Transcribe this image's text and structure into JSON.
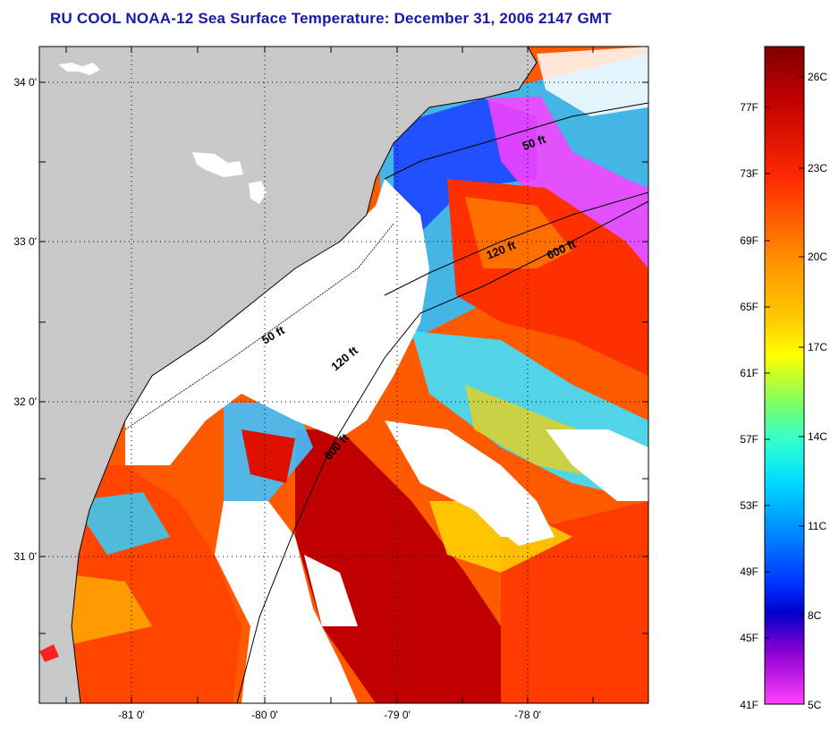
{
  "title": "RU COOL  NOAA-12  Sea Surface Temperature:  December 31, 2006 2147 GMT",
  "latitude_labels": [
    "34 0'",
    "33 0'",
    "32 0'",
    "31 0'"
  ],
  "longitude_labels": [
    "-81 0'",
    "-80 0'",
    "-79 0'",
    "-78 0'"
  ],
  "contour_labels": [
    "50 ft",
    "120 ft",
    "600 ft",
    "50 ft",
    "120 ft",
    "600 ft"
  ],
  "colorbar": {
    "fahrenheit": [
      "77F",
      "73F",
      "69F",
      "65F",
      "61F",
      "57F",
      "53F",
      "49F",
      "45F",
      "41F"
    ],
    "celsius": [
      "26C",
      "23C",
      "20C",
      "17C",
      "14C",
      "11C",
      "8C",
      "5C"
    ],
    "colors": [
      "#800000",
      "#d40000",
      "#ff3000",
      "#ff7000",
      "#ffb000",
      "#ffff00",
      "#a0ff40",
      "#30ffc0",
      "#00e0ff",
      "#0090ff",
      "#0030ff",
      "#0000c0",
      "#8000c0",
      "#ff40ff"
    ]
  },
  "colors": {
    "land": "#c8c8c8",
    "cloud": "#ffffff",
    "title": "#1919a6"
  }
}
